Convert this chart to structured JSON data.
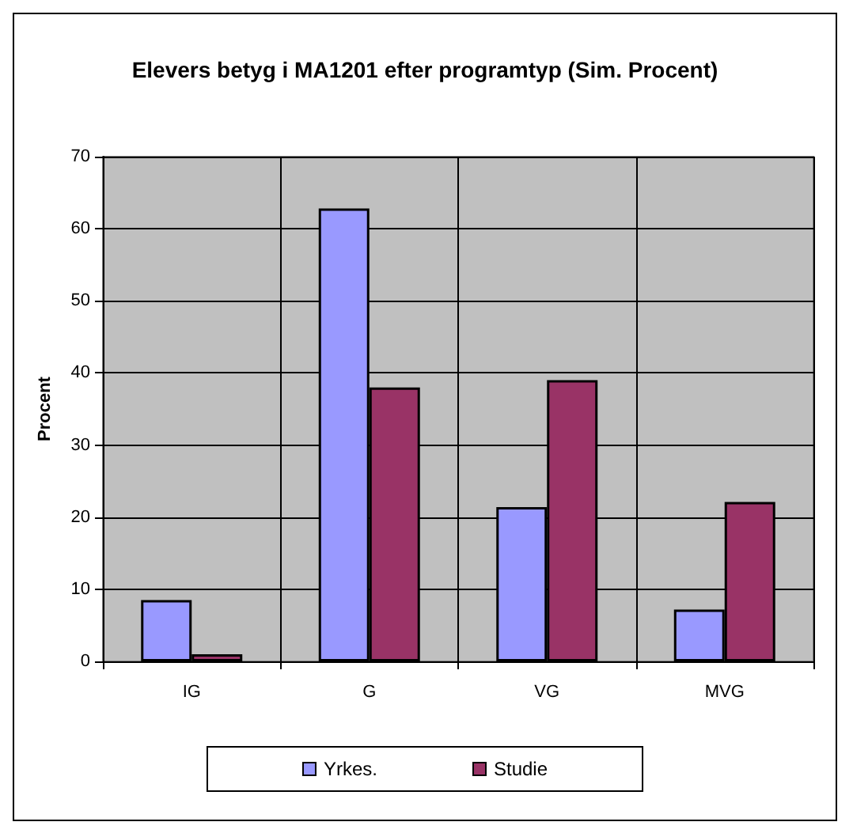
{
  "chart_data": {
    "type": "bar",
    "title": "Elevers betyg i MA1201 efter programtyp (Sim. Procent)",
    "ylabel": "Procent",
    "categories": [
      "IG",
      "G",
      "VG",
      "MVG"
    ],
    "series": [
      {
        "name": "Yrkes.",
        "color": "#9999ff",
        "values": [
          8.5,
          62.8,
          21.4,
          7.2
        ]
      },
      {
        "name": "Studie",
        "color": "#993366",
        "values": [
          1.0,
          38.0,
          39.0,
          22.1
        ]
      }
    ],
    "ylim": [
      0,
      70
    ],
    "yticks": [
      0,
      10,
      20,
      30,
      40,
      50,
      60,
      70
    ],
    "grid": true,
    "legend": "bottom"
  }
}
